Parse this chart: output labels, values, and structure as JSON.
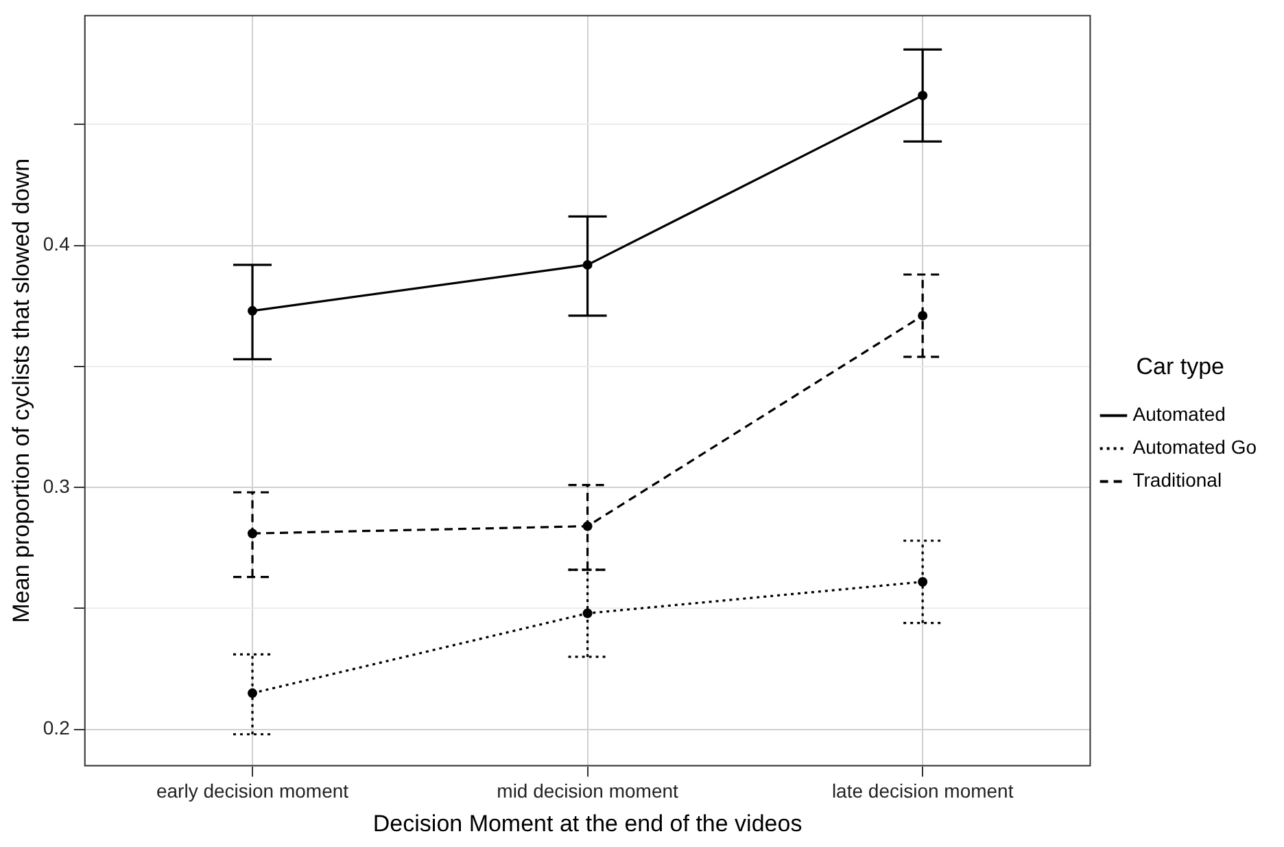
{
  "chart_data": {
    "type": "line",
    "xlabel": "Decision Moment at the end of the videos",
    "ylabel": "Mean proportion of cyclists that slowed down",
    "legend_title": "Car type",
    "categories": [
      "early decision moment",
      "mid decision moment",
      "late decision moment"
    ],
    "series": [
      {
        "name": "Automated",
        "color": "#000000",
        "line_style": "solid",
        "values": [
          0.373,
          0.392,
          0.462
        ],
        "errors": [
          [
            0.353,
            0.392
          ],
          [
            0.371,
            0.412
          ],
          [
            0.443,
            0.481
          ]
        ]
      },
      {
        "name": "Automated Go",
        "color": "#000000",
        "line_style": "dotted",
        "values": [
          0.215,
          0.248,
          0.261
        ],
        "errors": [
          [
            0.198,
            0.231
          ],
          [
            0.23,
            0.266
          ],
          [
            0.244,
            0.278
          ]
        ]
      },
      {
        "name": "Traditional",
        "color": "#000000",
        "line_style": "dashed",
        "values": [
          0.281,
          0.284,
          0.371
        ],
        "errors": [
          [
            0.263,
            0.298
          ],
          [
            0.266,
            0.301
          ],
          [
            0.354,
            0.388
          ]
        ]
      }
    ],
    "ylim": [
      0.185,
      0.495
    ],
    "yticks": [
      0.2,
      {
        "value": 0.25,
        "label": null
      },
      0.3,
      {
        "value": 0.35,
        "label": null
      },
      0.4,
      {
        "value": 0.45,
        "label": null
      }
    ],
    "grid": true,
    "legend": "right",
    "marker": "circle"
  }
}
